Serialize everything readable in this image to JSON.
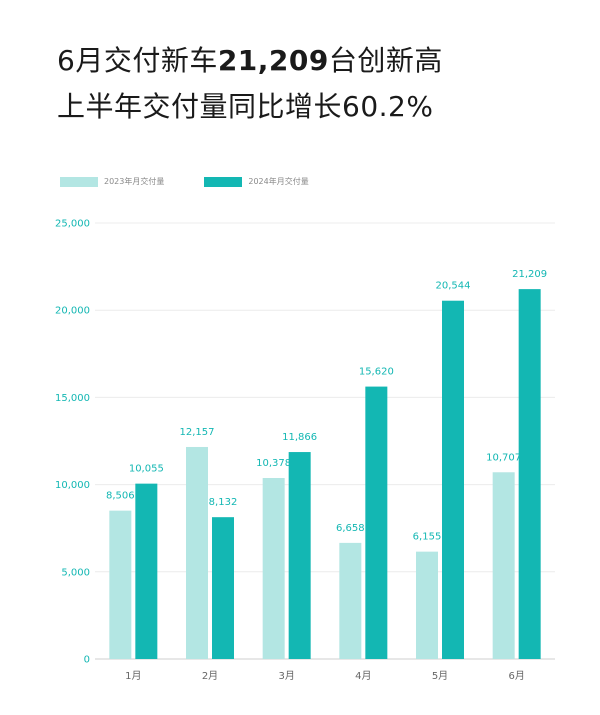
{
  "headline": {
    "line1_prefix": "6月交付新车",
    "line1_number": "21,209",
    "line1_suffix": "台创新高",
    "line2": "上半年交付量同比增长60.2%"
  },
  "colors": {
    "series_2023": "#b3e6e3",
    "series_2024": "#13b7b3",
    "axis_text": "#13b7b3",
    "category_text": "#666666"
  },
  "chart_data": {
    "type": "bar",
    "categories": [
      "1月",
      "2月",
      "3月",
      "4月",
      "5月",
      "6月"
    ],
    "series": [
      {
        "name": "2023年月交付量",
        "values": [
          8506,
          12157,
          10378,
          6658,
          6155,
          10707
        ],
        "labels": [
          "8,506",
          "12,157",
          "10,378",
          "6,658",
          "6,155",
          "10,707"
        ]
      },
      {
        "name": "2024年月交付量",
        "values": [
          10055,
          8132,
          11866,
          15620,
          20544,
          21209
        ],
        "labels": [
          "10,055",
          "8,132",
          "11,866",
          "15,620",
          "20,544",
          "21,209"
        ]
      }
    ],
    "yticks": [
      "0",
      "5,000",
      "10,000",
      "15,000",
      "20,000",
      "25,000"
    ],
    "ylim": [
      0,
      25000
    ],
    "legend": "top-left",
    "grid": true
  }
}
